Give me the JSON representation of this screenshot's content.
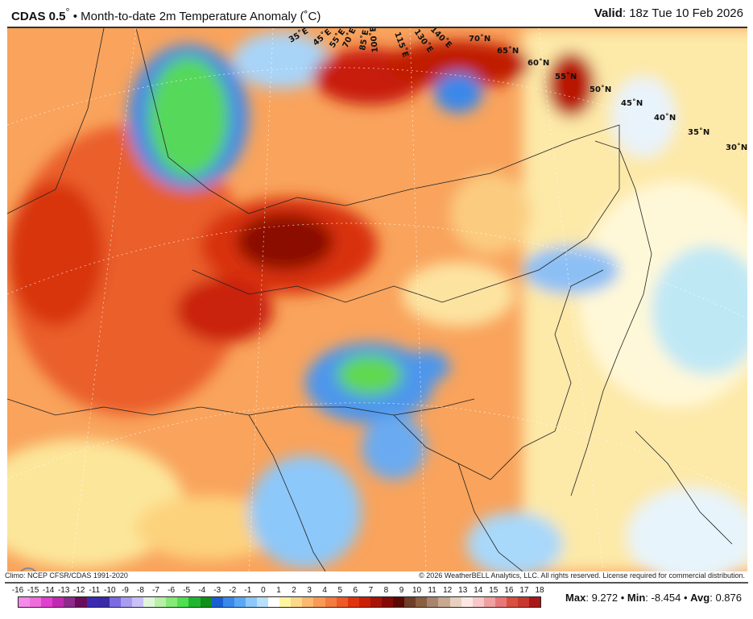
{
  "header": {
    "model": "CDAS 0.5",
    "degree": "°",
    "separator": "•",
    "title": "Month-to-date 2m Temperature Anomaly (˚C)",
    "valid_label": "Valid",
    "valid_value": ": 18z Tue 10 Feb 2026"
  },
  "map": {
    "lon_labels": [
      "35˚E",
      "45˚E",
      "55˚E",
      "70˚E",
      "85˚E",
      "100˚E",
      "115˚E",
      "130˚E",
      "140˚E"
    ],
    "lat_labels": [
      "70˚N",
      "65˚N",
      "60˚N",
      "55˚N",
      "50˚N",
      "45˚N",
      "40˚N",
      "35˚N",
      "30˚N"
    ],
    "logo": "WeatherBELL"
  },
  "footer": {
    "climo": "Climo: NCEP CFSR/CDAS 1991-2020",
    "copyright": "© 2026 WeatherBELL Analytics, LLC. All rights reserved. License required for commercial distribution."
  },
  "colorbar": {
    "labels": [
      "-16",
      "-15",
      "-14",
      "-13",
      "-12",
      "-11",
      "-10",
      "-9",
      "-8",
      "-7",
      "-6",
      "-5",
      "-4",
      "-3",
      "-2",
      "-1",
      "0",
      "1",
      "2",
      "3",
      "4",
      "5",
      "6",
      "7",
      "8",
      "9",
      "10",
      "11",
      "12",
      "13",
      "14",
      "15",
      "16",
      "17",
      "18"
    ],
    "colors": [
      "#f58be8",
      "#f06cdd",
      "#e03fcf",
      "#c02ab0",
      "#8e2a8a",
      "#6a0d5a",
      "#3c2ab3",
      "#3a2aa8",
      "#7a6be0",
      "#a89cf0",
      "#c8c0f7",
      "#e0f6da",
      "#b8f0a8",
      "#86ea76",
      "#4fe050",
      "#20b530",
      "#109018",
      "#1a5fd0",
      "#3a88ea",
      "#5aa8f5",
      "#8cc8fa",
      "#b8e0fb",
      "#ffffff",
      "#fff5a0",
      "#fdd88a",
      "#fbb870",
      "#f99a58",
      "#f47c40",
      "#ee5a28",
      "#e03410",
      "#c92008",
      "#a81408",
      "#850a05",
      "#5a0a02",
      "#6e3e28",
      "#8a6040",
      "#a88470",
      "#c8a890",
      "#e8d0c0",
      "#fbe8e4",
      "#f8c8c8",
      "#f0a0a0",
      "#e87878",
      "#d85040",
      "#c83830",
      "#a81818"
    ],
    "stats": {
      "max_label": "Max",
      "max": ": 9.272",
      "min_label": "Min",
      "min": ": -8.454",
      "avg_label": "Avg",
      "avg": ": 0.876",
      "sep": " • "
    }
  }
}
